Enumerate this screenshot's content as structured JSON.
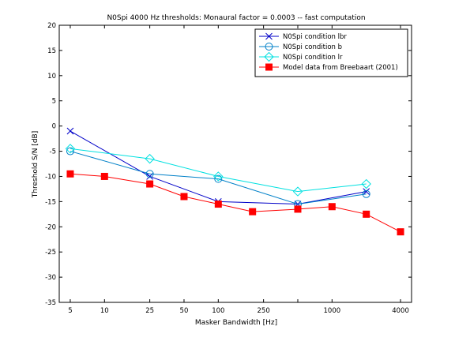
{
  "chart_data": {
    "type": "line",
    "title": "N0Spi 4000 Hz thresholds: Monaural factor = 0.0003 -- fast computation",
    "xlabel": "Masker Bandwidth [Hz]",
    "ylabel": "Threshold S/N [dB]",
    "x_scale": "log",
    "xlim": [
      4,
      5000
    ],
    "ylim": [
      -35,
      20
    ],
    "x_ticks": [
      5,
      10,
      25,
      50,
      100,
      250,
      500,
      1000,
      4000
    ],
    "x_tick_labels": [
      "5",
      "10",
      "25",
      "50",
      "100",
      "250",
      "",
      "1000",
      "4000"
    ],
    "y_ticks": [
      -35,
      -30,
      -25,
      -20,
      -15,
      -10,
      -5,
      0,
      5,
      10,
      15,
      20
    ],
    "y_tick_labels": [
      "-35",
      "-30",
      "-25",
      "-20",
      "-15",
      "-10",
      "-5",
      "0",
      "5",
      "10",
      "15",
      "20"
    ],
    "grid": false,
    "legend_position": "top-right",
    "series": [
      {
        "name": "N0Spi condition lbr",
        "color": "#0000c8",
        "marker": "x",
        "x": [
          5,
          25,
          100,
          500,
          2000
        ],
        "y": [
          -1,
          -10,
          -15,
          -15.5,
          -13
        ]
      },
      {
        "name": "N0Spi condition b",
        "color": "#0080c8",
        "marker": "circle",
        "x": [
          5,
          25,
          100,
          500,
          2000
        ],
        "y": [
          -5,
          -9.5,
          -10.5,
          -15.5,
          -13.5
        ]
      },
      {
        "name": "N0Spi condition lr",
        "color": "#00e0e0",
        "marker": "diamond",
        "x": [
          5,
          25,
          100,
          500,
          2000
        ],
        "y": [
          -4.5,
          -6.5,
          -10,
          -13,
          -11.5
        ]
      },
      {
        "name": "Model data from Breebaart (2001)",
        "color": "#ff0000",
        "marker": "square",
        "x": [
          5,
          10,
          25,
          50,
          100,
          200,
          500,
          1000,
          2000,
          4000
        ],
        "y": [
          -9.5,
          -10,
          -11.5,
          -14,
          -15.5,
          -17,
          -16.5,
          -16,
          -17.5,
          -21
        ]
      }
    ]
  }
}
